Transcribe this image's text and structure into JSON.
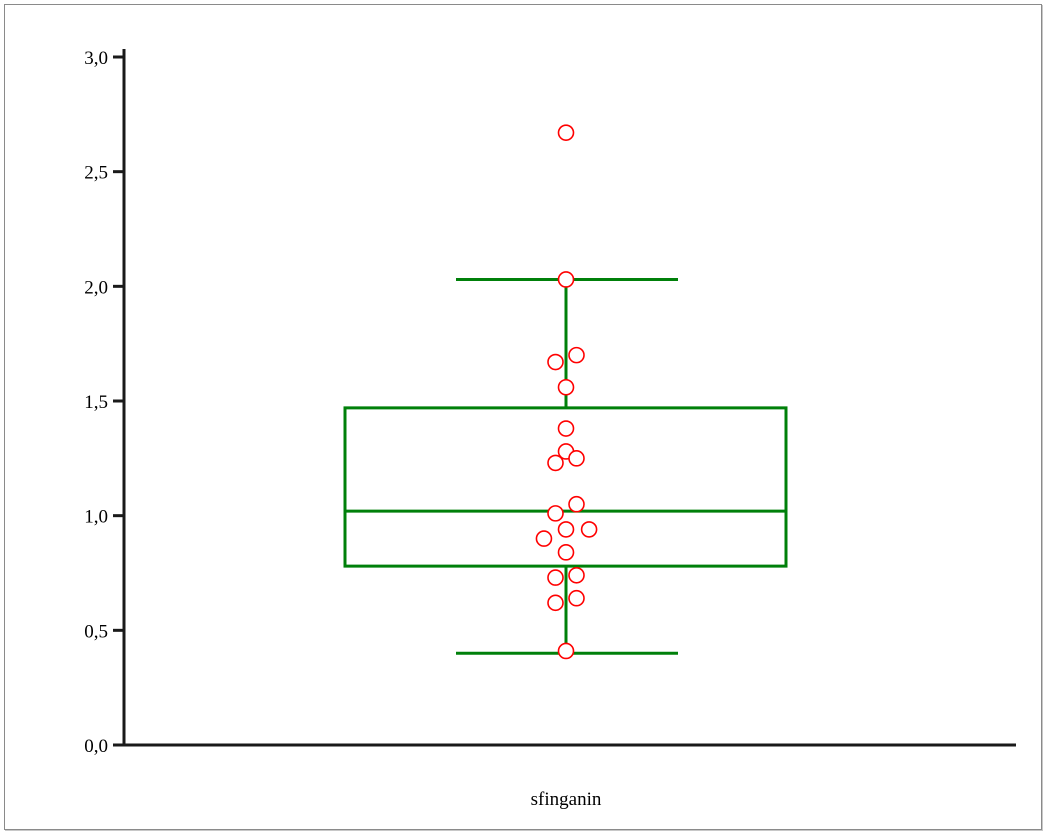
{
  "chart_data": {
    "type": "box",
    "title": "",
    "xlabel": "",
    "ylabel": "",
    "ylim": [
      0,
      3.0
    ],
    "y_ticks": [
      {
        "value": 0.0,
        "label": "0,0"
      },
      {
        "value": 0.5,
        "label": "0,5"
      },
      {
        "value": 1.0,
        "label": "1,0"
      },
      {
        "value": 1.5,
        "label": "1,5"
      },
      {
        "value": 2.0,
        "label": "2,0"
      },
      {
        "value": 2.5,
        "label": "2,5"
      },
      {
        "value": 3.0,
        "label": "3,0"
      }
    ],
    "grid": false,
    "categories": [
      "sfinganin"
    ],
    "box": {
      "category": "sfinganin",
      "whisker_low": 0.4,
      "q1": 0.78,
      "median": 1.02,
      "q3": 1.47,
      "whisker_high": 2.03
    },
    "points": [
      {
        "y": 2.67,
        "offset": 0
      },
      {
        "y": 2.03,
        "offset": 0
      },
      {
        "y": 1.7,
        "offset": 1
      },
      {
        "y": 1.67,
        "offset": -1
      },
      {
        "y": 1.56,
        "offset": 0
      },
      {
        "y": 1.38,
        "offset": 0
      },
      {
        "y": 1.28,
        "offset": 0
      },
      {
        "y": 1.25,
        "offset": 1
      },
      {
        "y": 1.23,
        "offset": -1
      },
      {
        "y": 1.05,
        "offset": 1
      },
      {
        "y": 1.01,
        "offset": -1
      },
      {
        "y": 0.94,
        "offset": 0
      },
      {
        "y": 0.94,
        "offset": 2.2
      },
      {
        "y": 0.9,
        "offset": -2.1
      },
      {
        "y": 0.84,
        "offset": 0
      },
      {
        "y": 0.74,
        "offset": 1
      },
      {
        "y": 0.73,
        "offset": -1
      },
      {
        "y": 0.64,
        "offset": 1
      },
      {
        "y": 0.62,
        "offset": -1
      },
      {
        "y": 0.41,
        "offset": 0
      }
    ],
    "colors": {
      "box": "#00800a",
      "points": "#ff0000",
      "axis": "#1a1a1a"
    }
  }
}
